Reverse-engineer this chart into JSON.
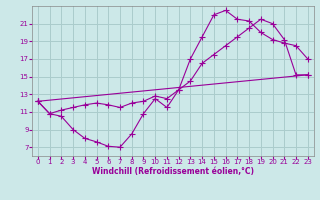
{
  "xlabel": "Windchill (Refroidissement éolien,°C)",
  "bg_color": "#cce8e8",
  "grid_color": "#aacccc",
  "line_color": "#990099",
  "xlim": [
    -0.5,
    23.5
  ],
  "ylim": [
    6,
    23
  ],
  "xticks": [
    0,
    1,
    2,
    3,
    4,
    5,
    6,
    7,
    8,
    9,
    10,
    11,
    12,
    13,
    14,
    15,
    16,
    17,
    18,
    19,
    20,
    21,
    22,
    23
  ],
  "yticks": [
    7,
    9,
    11,
    13,
    15,
    17,
    19,
    21
  ],
  "line1_x": [
    0,
    1,
    2,
    3,
    4,
    5,
    6,
    7,
    8,
    9,
    10,
    11,
    12,
    13,
    14,
    15,
    16,
    17,
    18,
    19,
    20,
    21,
    22,
    23
  ],
  "line1_y": [
    12.2,
    10.8,
    10.5,
    9.0,
    8.0,
    7.6,
    7.1,
    7.0,
    8.5,
    10.8,
    12.5,
    11.5,
    13.5,
    17.0,
    19.5,
    22.0,
    22.5,
    21.5,
    21.3,
    20.0,
    19.2,
    18.8,
    18.5,
    17.0
  ],
  "line2_x": [
    0,
    1,
    2,
    3,
    4,
    5,
    6,
    7,
    8,
    9,
    10,
    11,
    12,
    13,
    14,
    15,
    16,
    17,
    18,
    19,
    20,
    21,
    22,
    23
  ],
  "line2_y": [
    12.2,
    10.8,
    11.2,
    11.5,
    11.8,
    12.0,
    11.8,
    11.5,
    12.0,
    12.2,
    12.8,
    12.5,
    13.5,
    14.5,
    16.5,
    17.5,
    18.5,
    19.5,
    20.5,
    21.5,
    21.0,
    19.2,
    15.2,
    15.2
  ],
  "line3_x": [
    0,
    23
  ],
  "line3_y": [
    12.2,
    15.2
  ]
}
